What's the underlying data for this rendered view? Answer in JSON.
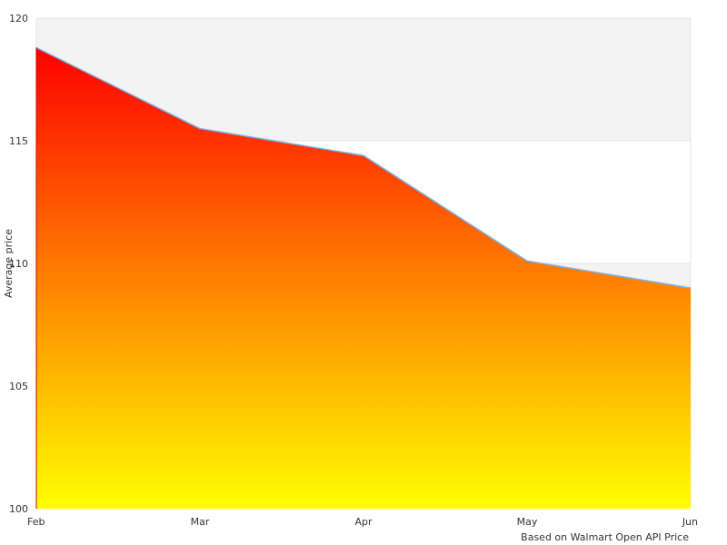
{
  "chart_data": {
    "type": "area",
    "title": "",
    "xlabel": "",
    "ylabel": "Average price",
    "credit": "Based on Walmart Open API Price",
    "categories": [
      "Feb",
      "Mar",
      "Apr",
      "May",
      "Jun"
    ],
    "series": [
      {
        "values": [
          118.8,
          115.5,
          114.4,
          110.1,
          109.0
        ]
      }
    ],
    "ylim": [
      100,
      120
    ],
    "yticks": [
      100,
      105,
      110,
      115,
      120
    ],
    "grid": true,
    "plot_bands": [
      {
        "from": 110,
        "to": 115,
        "color": "#ffffff"
      },
      {
        "from": 115,
        "to": 120,
        "color": "#f3f3f3"
      },
      {
        "from": 105,
        "to": 110,
        "color": "#f3f3f3"
      }
    ],
    "colors": {
      "fill_top": "#ff0000",
      "fill_bottom": "#ffff00",
      "line": "#7cb5ec",
      "grid": "#e6e6e6"
    }
  }
}
